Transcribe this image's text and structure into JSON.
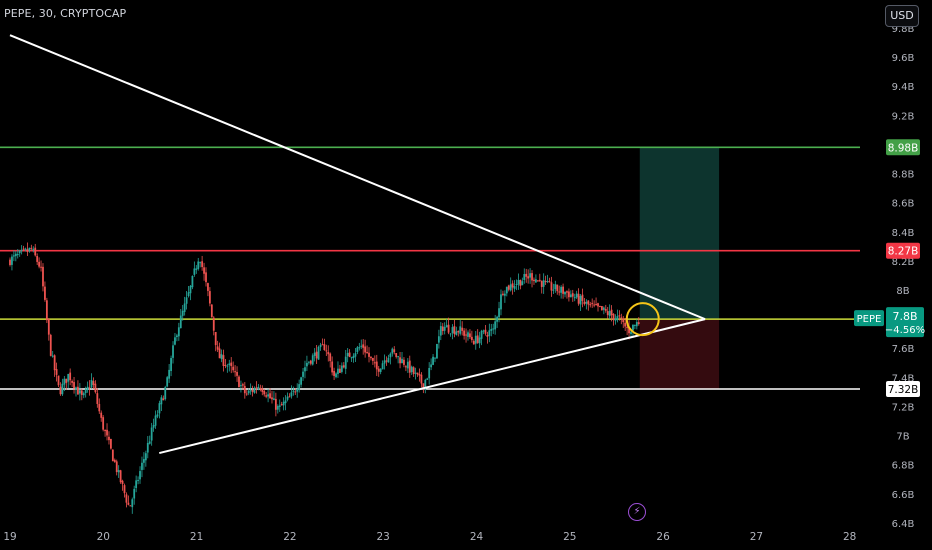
{
  "legend": {
    "symbol": "PEPE, 30, CRYPTOCAP"
  },
  "toolbar": {
    "currency": "USD"
  },
  "icons": {
    "bottom": "lightning-bolt-icon"
  },
  "chart_data": {
    "type": "candlestick",
    "title": "",
    "x_axis": {
      "labels": [
        {
          "day": 19,
          "text": "19"
        },
        {
          "day": 20,
          "text": "20"
        },
        {
          "day": 21,
          "text": "21"
        },
        {
          "day": 22,
          "text": "22"
        },
        {
          "day": 23,
          "text": "23"
        },
        {
          "day": 24,
          "text": "24"
        },
        {
          "day": 25,
          "text": "25"
        },
        {
          "day": 26,
          "text": "26"
        },
        {
          "day": 27,
          "text": "27"
        },
        {
          "day": 28,
          "text": "28"
        }
      ],
      "range": [
        19,
        28.5
      ]
    },
    "y_axis": {
      "unit": "B",
      "range": [
        6.4,
        9.8
      ],
      "ticks": [
        {
          "v": 6.4,
          "t": "6.4B"
        },
        {
          "v": 6.6,
          "t": "6.6B"
        },
        {
          "v": 6.8,
          "t": "6.8B"
        },
        {
          "v": 7.0,
          "t": "7B"
        },
        {
          "v": 7.2,
          "t": "7.2B"
        },
        {
          "v": 7.4,
          "t": "7.4B"
        },
        {
          "v": 7.6,
          "t": "7.6B"
        },
        {
          "v": 8.0,
          "t": "8B"
        },
        {
          "v": 8.2,
          "t": "8.2B"
        },
        {
          "v": 8.4,
          "t": "8.4B"
        },
        {
          "v": 8.6,
          "t": "8.6B"
        },
        {
          "v": 8.8,
          "t": "8.8B"
        },
        {
          "v": 9.2,
          "t": "9.2B"
        },
        {
          "v": 9.4,
          "t": "9.4B"
        },
        {
          "v": 9.6,
          "t": "9.6B"
        },
        {
          "v": 9.8,
          "t": "9.8B"
        }
      ]
    },
    "price_path": [
      [
        19.0,
        8.2
      ],
      [
        19.25,
        8.28
      ],
      [
        19.35,
        8.15
      ],
      [
        19.45,
        7.6
      ],
      [
        19.55,
        7.3
      ],
      [
        19.65,
        7.42
      ],
      [
        19.8,
        7.25
      ],
      [
        19.9,
        7.38
      ],
      [
        20.0,
        7.1
      ],
      [
        20.15,
        6.8
      ],
      [
        20.3,
        6.5
      ],
      [
        20.4,
        6.72
      ],
      [
        20.55,
        7.05
      ],
      [
        20.7,
        7.35
      ],
      [
        20.8,
        7.7
      ],
      [
        20.95,
        8.0
      ],
      [
        21.05,
        8.25
      ],
      [
        21.15,
        7.95
      ],
      [
        21.25,
        7.55
      ],
      [
        21.4,
        7.45
      ],
      [
        21.55,
        7.28
      ],
      [
        21.7,
        7.35
      ],
      [
        21.9,
        7.18
      ],
      [
        22.05,
        7.28
      ],
      [
        22.2,
        7.5
      ],
      [
        22.4,
        7.62
      ],
      [
        22.5,
        7.4
      ],
      [
        22.65,
        7.55
      ],
      [
        22.8,
        7.62
      ],
      [
        22.95,
        7.45
      ],
      [
        23.1,
        7.58
      ],
      [
        23.25,
        7.5
      ],
      [
        23.45,
        7.35
      ],
      [
        23.55,
        7.5
      ],
      [
        23.65,
        7.75
      ],
      [
        23.85,
        7.72
      ],
      [
        24.0,
        7.65
      ],
      [
        24.1,
        7.7
      ],
      [
        24.2,
        7.72
      ],
      [
        24.3,
        8.0
      ],
      [
        24.45,
        8.05
      ],
      [
        24.6,
        8.1
      ],
      [
        24.8,
        8.02
      ],
      [
        25.0,
        7.98
      ],
      [
        25.2,
        7.9
      ],
      [
        25.4,
        7.85
      ],
      [
        25.55,
        7.8
      ],
      [
        25.65,
        7.72
      ],
      [
        25.75,
        7.78
      ]
    ],
    "lines": {
      "resistance_upper": {
        "value": 8.98,
        "label": "8.98B",
        "color": "#4caf50"
      },
      "resistance": {
        "value": 8.27,
        "label": "8.27B",
        "color": "#f23645"
      },
      "current": {
        "value": 7.8,
        "label": "7.8B",
        "change": "−4.56%",
        "symbol": "PEPE",
        "color": "#cddc39"
      },
      "support": {
        "value": 7.32,
        "label": "7.32B",
        "color": "#ffffff"
      }
    },
    "trendlines": [
      {
        "from": [
          19.0,
          9.75
        ],
        "to": [
          26.45,
          7.8
        ]
      },
      {
        "from": [
          20.6,
          6.88
        ],
        "to": [
          26.45,
          7.8
        ]
      }
    ],
    "position": {
      "x_start": 25.75,
      "x_end": 26.6,
      "entry": 7.8,
      "target": 8.98,
      "stop": 7.32,
      "profit_color": "#0f3d36",
      "loss_color": "#3d0d12"
    },
    "highlight": {
      "x": 25.75,
      "y": 7.8,
      "color": "#f5c518"
    },
    "colors": {
      "up": "#26a69a",
      "down": "#ef5350",
      "trendline": "#ffffff"
    }
  }
}
